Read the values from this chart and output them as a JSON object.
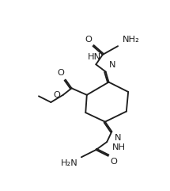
{
  "bg": "#ffffff",
  "lc": "#1e1e1e",
  "lw": 1.35,
  "fs": 8.2,
  "figsize": [
    2.15,
    2.41
  ],
  "dpi": 100,
  "xlim": [
    0,
    215
  ],
  "ylim": [
    0,
    241
  ]
}
